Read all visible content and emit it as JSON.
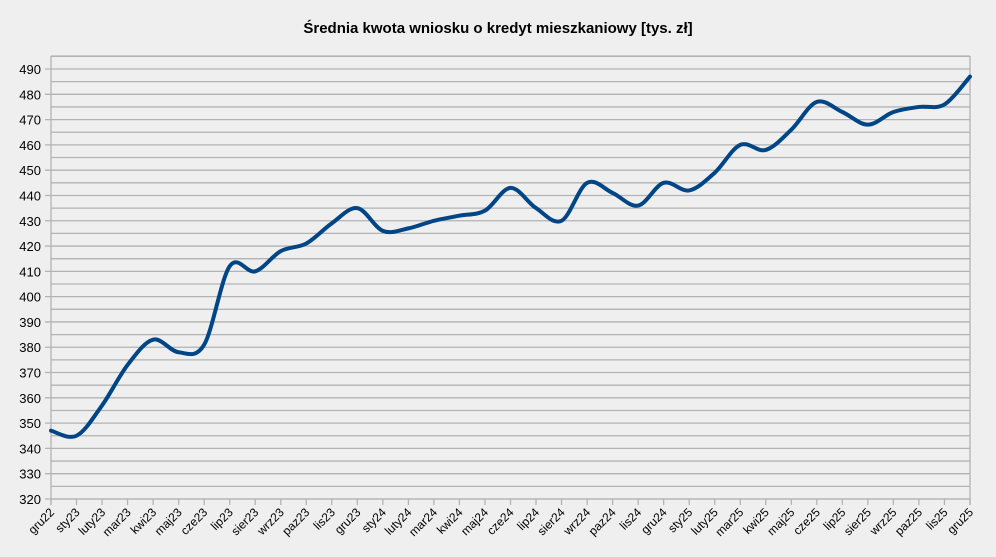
{
  "chart_data": {
    "type": "line",
    "title": "Średnia kwota wniosku o kredyt mieszkaniowy [tys. zł]",
    "xlabel": "",
    "ylabel": "",
    "ylim": [
      320,
      490
    ],
    "y_major_step": 10,
    "y_grid_step": 5,
    "grid": true,
    "legend": "none",
    "line_color": "#004586",
    "categories": [
      "gru22",
      "sty23",
      "luty23",
      "mar23",
      "kwi23",
      "maj23",
      "cze23",
      "lip23",
      "sier23",
      "wrz23",
      "paz23",
      "lis23",
      "gru23",
      "sty24",
      "luty24",
      "mar24",
      "kwi24",
      "maj24",
      "cze24",
      "lip24",
      "sier24",
      "wrz24",
      "paz24",
      "lis24",
      "gru24",
      "sty25",
      "luty25",
      "mar25",
      "kwi25",
      "maj25",
      "cze25",
      "lip25",
      "sier25",
      "wrz25",
      "paz25",
      "lis25",
      "gru25"
    ],
    "series": [
      {
        "name": "Średnia kwota wniosku",
        "values": [
          347,
          345,
          357,
          373,
          383,
          378,
          381,
          412,
          410,
          418,
          421,
          429,
          435,
          426,
          427,
          430,
          432,
          434,
          443,
          435,
          430,
          445,
          441,
          436,
          445,
          442,
          449,
          460,
          458,
          466,
          477,
          473,
          468,
          473,
          475,
          476,
          487
        ]
      }
    ],
    "yticks": [
      320,
      330,
      340,
      350,
      360,
      370,
      380,
      390,
      400,
      410,
      420,
      430,
      440,
      450,
      460,
      470,
      480,
      490
    ]
  }
}
